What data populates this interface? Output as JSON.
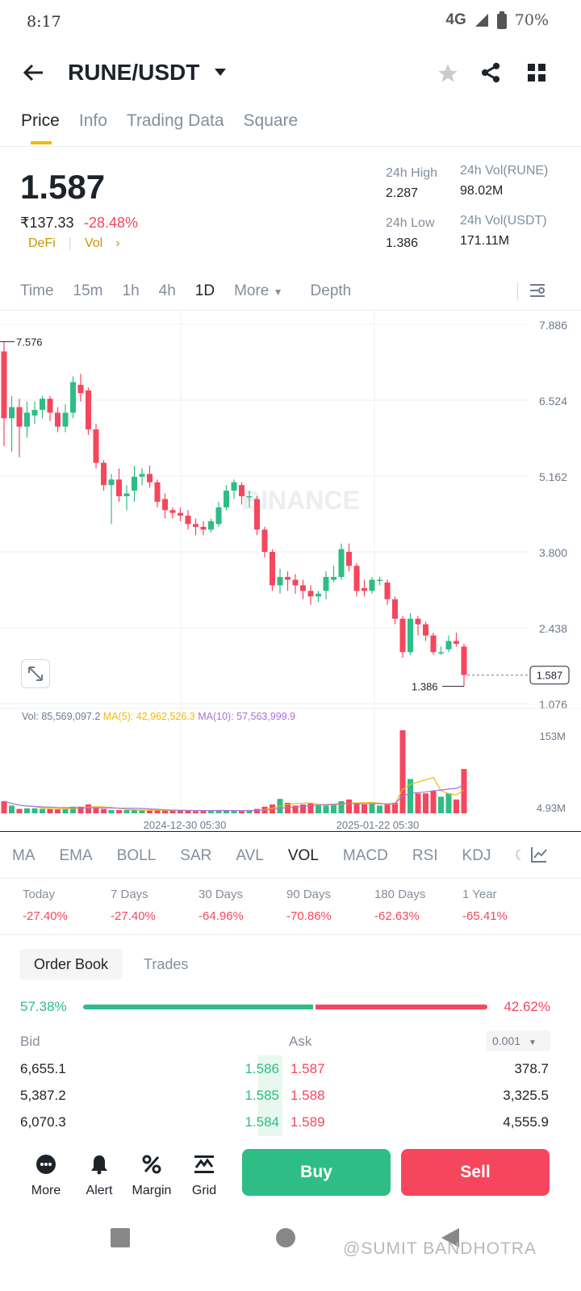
{
  "status": {
    "time": "8:17",
    "network": "4G",
    "battery": "70%"
  },
  "header": {
    "pair": "RUNE/USDT"
  },
  "tabs": [
    "Price",
    "Info",
    "Trading Data",
    "Square"
  ],
  "price": {
    "last": "1.587",
    "fiat": "₹137.33",
    "change": "-28.48%",
    "tag1": "DeFi",
    "tag2": "Vol",
    "high_label": "24h High",
    "high": "2.287",
    "low_label": "24h Low",
    "low": "1.386",
    "vol_rune_label": "24h Vol(RUNE)",
    "vol_rune": "98.02M",
    "vol_usdt_label": "24h Vol(USDT)",
    "vol_usdt": "171.11M"
  },
  "timeframes": [
    "Time",
    "15m",
    "1h",
    "4h",
    "1D",
    "More",
    "Depth"
  ],
  "chart_data": {
    "type": "candlestick",
    "y_ticks": [
      "7.886",
      "6.524",
      "5.162",
      "3.800",
      "2.438",
      "1.076"
    ],
    "ylim": [
      1.076,
      7.886
    ],
    "x_ticks": [
      "2024-12-30 05:30",
      "2025-01-22 05:30"
    ],
    "max_label": "7.576",
    "min_label": "1.386",
    "last_price": "1.587",
    "watermark": "BINANCE",
    "candles": [
      [
        7.4,
        6.2,
        7.58,
        5.7
      ],
      [
        6.2,
        6.4,
        6.6,
        5.6
      ],
      [
        6.4,
        6.05,
        6.55,
        5.5
      ],
      [
        6.05,
        6.3,
        6.5,
        5.85
      ],
      [
        6.25,
        6.35,
        6.5,
        6.1
      ],
      [
        6.35,
        6.55,
        6.6,
        6.2
      ],
      [
        6.55,
        6.3,
        6.6,
        6.15
      ],
      [
        6.3,
        6.05,
        6.4,
        5.95
      ],
      [
        6.05,
        6.3,
        6.45,
        5.95
      ],
      [
        6.3,
        6.85,
        6.95,
        6.2
      ],
      [
        6.8,
        6.65,
        7.0,
        6.5
      ],
      [
        6.7,
        6.0,
        6.75,
        5.9
      ],
      [
        6.0,
        5.4,
        6.1,
        5.3
      ],
      [
        5.4,
        5.0,
        5.45,
        4.9
      ],
      [
        5.0,
        5.1,
        5.2,
        4.3
      ],
      [
        5.1,
        4.8,
        5.3,
        4.7
      ],
      [
        4.8,
        4.85,
        5.0,
        4.55
      ],
      [
        4.9,
        5.15,
        5.35,
        4.7
      ],
      [
        5.15,
        5.2,
        5.3,
        5.0
      ],
      [
        5.2,
        5.05,
        5.35,
        4.95
      ],
      [
        5.05,
        4.7,
        5.1,
        4.6
      ],
      [
        4.75,
        4.55,
        4.85,
        4.4
      ],
      [
        4.55,
        4.5,
        4.6,
        4.4
      ],
      [
        4.5,
        4.45,
        4.6,
        4.35
      ],
      [
        4.45,
        4.3,
        4.55,
        4.2
      ],
      [
        4.3,
        4.25,
        4.4,
        4.1
      ],
      [
        4.25,
        4.2,
        4.35,
        4.1
      ],
      [
        4.2,
        4.35,
        4.4,
        4.15
      ],
      [
        4.3,
        4.6,
        4.7,
        4.25
      ],
      [
        4.6,
        4.9,
        5.0,
        4.55
      ],
      [
        4.9,
        5.05,
        5.1,
        4.75
      ],
      [
        5.0,
        4.8,
        5.05,
        4.65
      ],
      [
        4.8,
        4.8,
        4.9,
        4.6
      ],
      [
        4.75,
        4.2,
        4.8,
        4.1
      ],
      [
        4.2,
        3.8,
        4.25,
        3.7
      ],
      [
        3.8,
        3.2,
        3.85,
        3.1
      ],
      [
        3.2,
        3.35,
        3.5,
        3.05
      ],
      [
        3.35,
        3.3,
        3.45,
        3.1
      ],
      [
        3.3,
        3.2,
        3.4,
        3.05
      ],
      [
        3.2,
        3.1,
        3.3,
        2.95
      ],
      [
        3.1,
        3.0,
        3.2,
        2.85
      ],
      [
        3.0,
        3.05,
        3.1,
        2.9
      ],
      [
        3.1,
        3.35,
        3.45,
        2.95
      ],
      [
        3.3,
        3.35,
        3.55,
        3.25
      ],
      [
        3.35,
        3.85,
        3.95,
        3.3
      ],
      [
        3.8,
        3.55,
        3.95,
        3.45
      ],
      [
        3.55,
        3.1,
        3.6,
        3.0
      ],
      [
        3.15,
        3.1,
        3.3,
        3.0
      ],
      [
        3.1,
        3.3,
        3.35,
        3.05
      ],
      [
        3.3,
        3.3,
        3.35,
        3.2
      ],
      [
        3.25,
        2.95,
        3.3,
        2.85
      ],
      [
        2.95,
        2.6,
        3.0,
        2.5
      ],
      [
        2.6,
        2.0,
        2.65,
        1.9
      ],
      [
        2.0,
        2.6,
        2.7,
        1.95
      ],
      [
        2.6,
        2.5,
        2.65,
        2.3
      ],
      [
        2.5,
        2.3,
        2.55,
        2.2
      ],
      [
        2.3,
        2.0,
        2.35,
        1.95
      ],
      [
        2.0,
        2.0,
        2.1,
        1.95
      ],
      [
        2.05,
        2.2,
        2.3,
        2.0
      ],
      [
        2.2,
        2.15,
        2.35,
        2.1
      ],
      [
        2.1,
        1.59,
        2.15,
        1.39
      ]
    ],
    "volume": {
      "label": "Vol: 85,569,097.2",
      "ma5": "MA(5): 42,962,526.3",
      "ma10": "MA(10): 57,563,999.9",
      "top": "153M",
      "bottom": "4.93M",
      "max": 153,
      "values": [
        22,
        14,
        8,
        9,
        9,
        8,
        8,
        7,
        9,
        12,
        12,
        16,
        10,
        8,
        6,
        6,
        6,
        6,
        5,
        5,
        6,
        5,
        5,
        5,
        5,
        4,
        5,
        5,
        6,
        5,
        4,
        4,
        6,
        8,
        12,
        16,
        26,
        19,
        14,
        16,
        18,
        14,
        14,
        15,
        22,
        25,
        18,
        16,
        18,
        14,
        16,
        19,
        150,
        62,
        36,
        36,
        40,
        30,
        36,
        25,
        80
      ]
    }
  },
  "indicators": [
    "MA",
    "EMA",
    "BOLL",
    "SAR",
    "AVL",
    "VOL",
    "MACD",
    "RSI",
    "KDJ",
    "OB"
  ],
  "performance": [
    {
      "label": "Today",
      "value": "-27.40%"
    },
    {
      "label": "7 Days",
      "value": "-27.40%"
    },
    {
      "label": "30 Days",
      "value": "-64.96%"
    },
    {
      "label": "90 Days",
      "value": "-70.86%"
    },
    {
      "label": "180 Days",
      "value": "-62.63%"
    },
    {
      "label": "1 Year",
      "value": "-65.41%"
    }
  ],
  "orderbook": {
    "tab1": "Order Book",
    "tab2": "Trades",
    "bid_pct": "57.38%",
    "ask_pct": "42.62%",
    "bid_header": "Bid",
    "ask_header": "Ask",
    "precision": "0.001",
    "rows": [
      {
        "bid_qty": "6,655.1",
        "bid": "1.586",
        "ask": "1.587",
        "ask_qty": "378.7"
      },
      {
        "bid_qty": "5,387.2",
        "bid": "1.585",
        "ask": "1.588",
        "ask_qty": "3,325.5"
      },
      {
        "bid_qty": "6,070.3",
        "bid": "1.584",
        "ask": "1.589",
        "ask_qty": "4,555.9"
      }
    ]
  },
  "bottom": {
    "more": "More",
    "alert": "Alert",
    "margin": "Margin",
    "grid": "Grid",
    "buy": "Buy",
    "sell": "Sell"
  },
  "watermark": "@SUMIT BANDHOTRA",
  "colors": {
    "up": "#2ebd85",
    "down": "#f6465d",
    "accent": "#f0b90b"
  }
}
